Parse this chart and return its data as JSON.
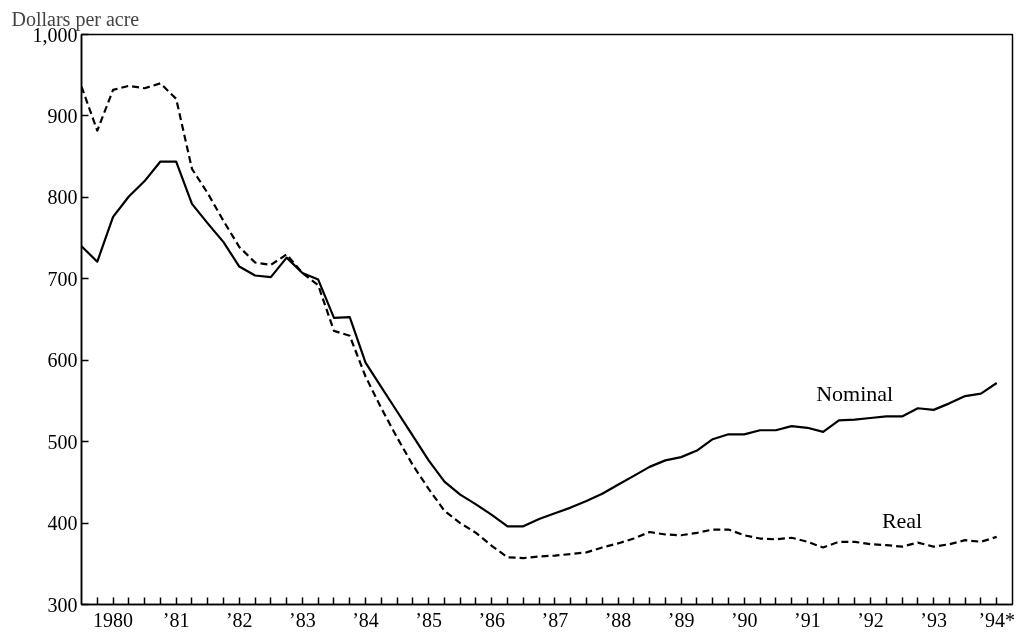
{
  "chart_data": {
    "type": "line",
    "ylabel": "Dollars per acre",
    "categories": [
      null,
      null,
      "1980",
      null,
      null,
      null,
      "’81",
      null,
      null,
      null,
      "’82",
      null,
      null,
      null,
      "’83",
      null,
      null,
      null,
      "’84",
      null,
      null,
      null,
      "’85",
      null,
      null,
      null,
      "’86",
      null,
      null,
      null,
      "’87",
      null,
      null,
      null,
      "’88",
      null,
      null,
      null,
      "’89",
      null,
      null,
      null,
      "’90",
      null,
      null,
      null,
      "’91",
      null,
      null,
      null,
      "’92",
      null,
      null,
      null,
      "’93",
      null,
      null,
      null,
      "’94*"
    ],
    "ylim": [
      300,
      1000
    ],
    "yticks": [
      300,
      400,
      500,
      600,
      700,
      800,
      900,
      {
        "value": 1000,
        "label": "1,000"
      }
    ],
    "grid": false,
    "legend": false,
    "marker": "none",
    "series": [
      {
        "name": "Nominal",
        "color": "#000000",
        "line_style": "solid",
        "values": [
          740,
          721,
          776,
          801,
          820,
          844,
          844,
          792,
          768,
          745,
          715,
          704,
          702,
          726,
          707,
          699,
          652,
          653,
          597,
          567,
          537,
          507,
          477,
          451,
          435,
          423,
          410,
          396,
          396,
          405,
          412,
          419,
          427,
          436,
          447,
          458,
          469,
          477,
          481,
          489,
          503,
          509,
          509,
          514,
          514,
          519,
          517,
          512,
          526,
          527,
          529,
          531,
          531,
          541,
          539,
          547,
          556,
          559,
          572
        ]
      },
      {
        "name": "Real",
        "color": "#000000",
        "line_style": "dashed",
        "values": [
          936,
          882,
          932,
          937,
          934,
          940,
          921,
          835,
          805,
          771,
          739,
          720,
          717,
          730,
          707,
          692,
          636,
          630,
          580,
          541,
          505,
          471,
          442,
          415,
          400,
          388,
          372,
          358,
          357,
          359,
          360,
          362,
          364,
          370,
          375,
          381,
          389,
          386,
          385,
          388,
          392,
          392,
          385,
          381,
          380,
          382,
          377,
          370,
          377,
          377,
          374,
          373,
          371,
          376,
          371,
          374,
          379,
          377,
          383
        ]
      }
    ]
  }
}
